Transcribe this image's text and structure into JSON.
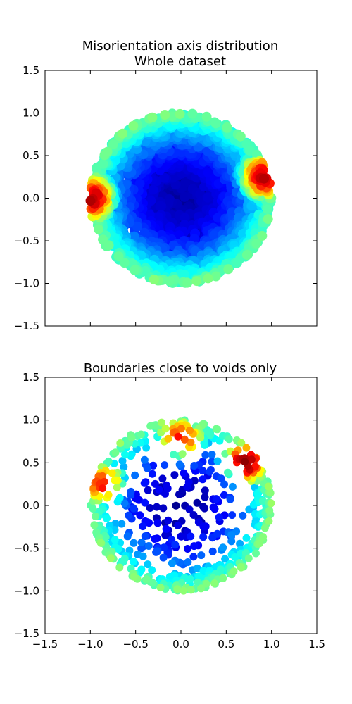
{
  "chart_data": [
    {
      "type": "scatter",
      "title": "Misorientation axis distribution",
      "subtitle": "Whole dataset",
      "xlim": [
        -1.5,
        1.5
      ],
      "ylim": [
        -1.5,
        1.5
      ],
      "x_ticks": [],
      "y_ticks": [
        "−1.5",
        "−1.0",
        "−0.5",
        "0.0",
        "0.5",
        "1.0",
        "1.5"
      ],
      "colormap": "jet",
      "marker": "circle",
      "grid": false,
      "legend": "none",
      "density": {
        "disk_radius": 1.0,
        "peak_regions": [
          {
            "x": -1.0,
            "y": 0.0,
            "level": 0.95
          },
          {
            "x": 0.92,
            "y": 0.25,
            "level": 0.92
          }
        ],
        "center_level": 0.02
      }
    },
    {
      "type": "scatter",
      "title": "Boundaries close to voids only",
      "xlim": [
        -1.5,
        1.5
      ],
      "ylim": [
        -1.5,
        1.5
      ],
      "x_ticks": [
        "−1.5",
        "−1.0",
        "−0.5",
        "0.0",
        "0.5",
        "1.0",
        "1.5"
      ],
      "y_ticks": [
        "−1.5",
        "−1.0",
        "−0.5",
        "0.0",
        "0.5",
        "1.0",
        "1.5"
      ],
      "colormap": "jet",
      "marker": "circle",
      "grid": false,
      "legend": "none",
      "density": {
        "disk_radius": 1.0,
        "peak_regions": [
          {
            "x": 0.0,
            "y": 0.75,
            "level": 0.95
          },
          {
            "x": 0.7,
            "y": 0.5,
            "level": 1.0
          },
          {
            "x": -0.85,
            "y": 0.25,
            "level": 0.85
          }
        ],
        "center_level": 0.05
      }
    }
  ]
}
